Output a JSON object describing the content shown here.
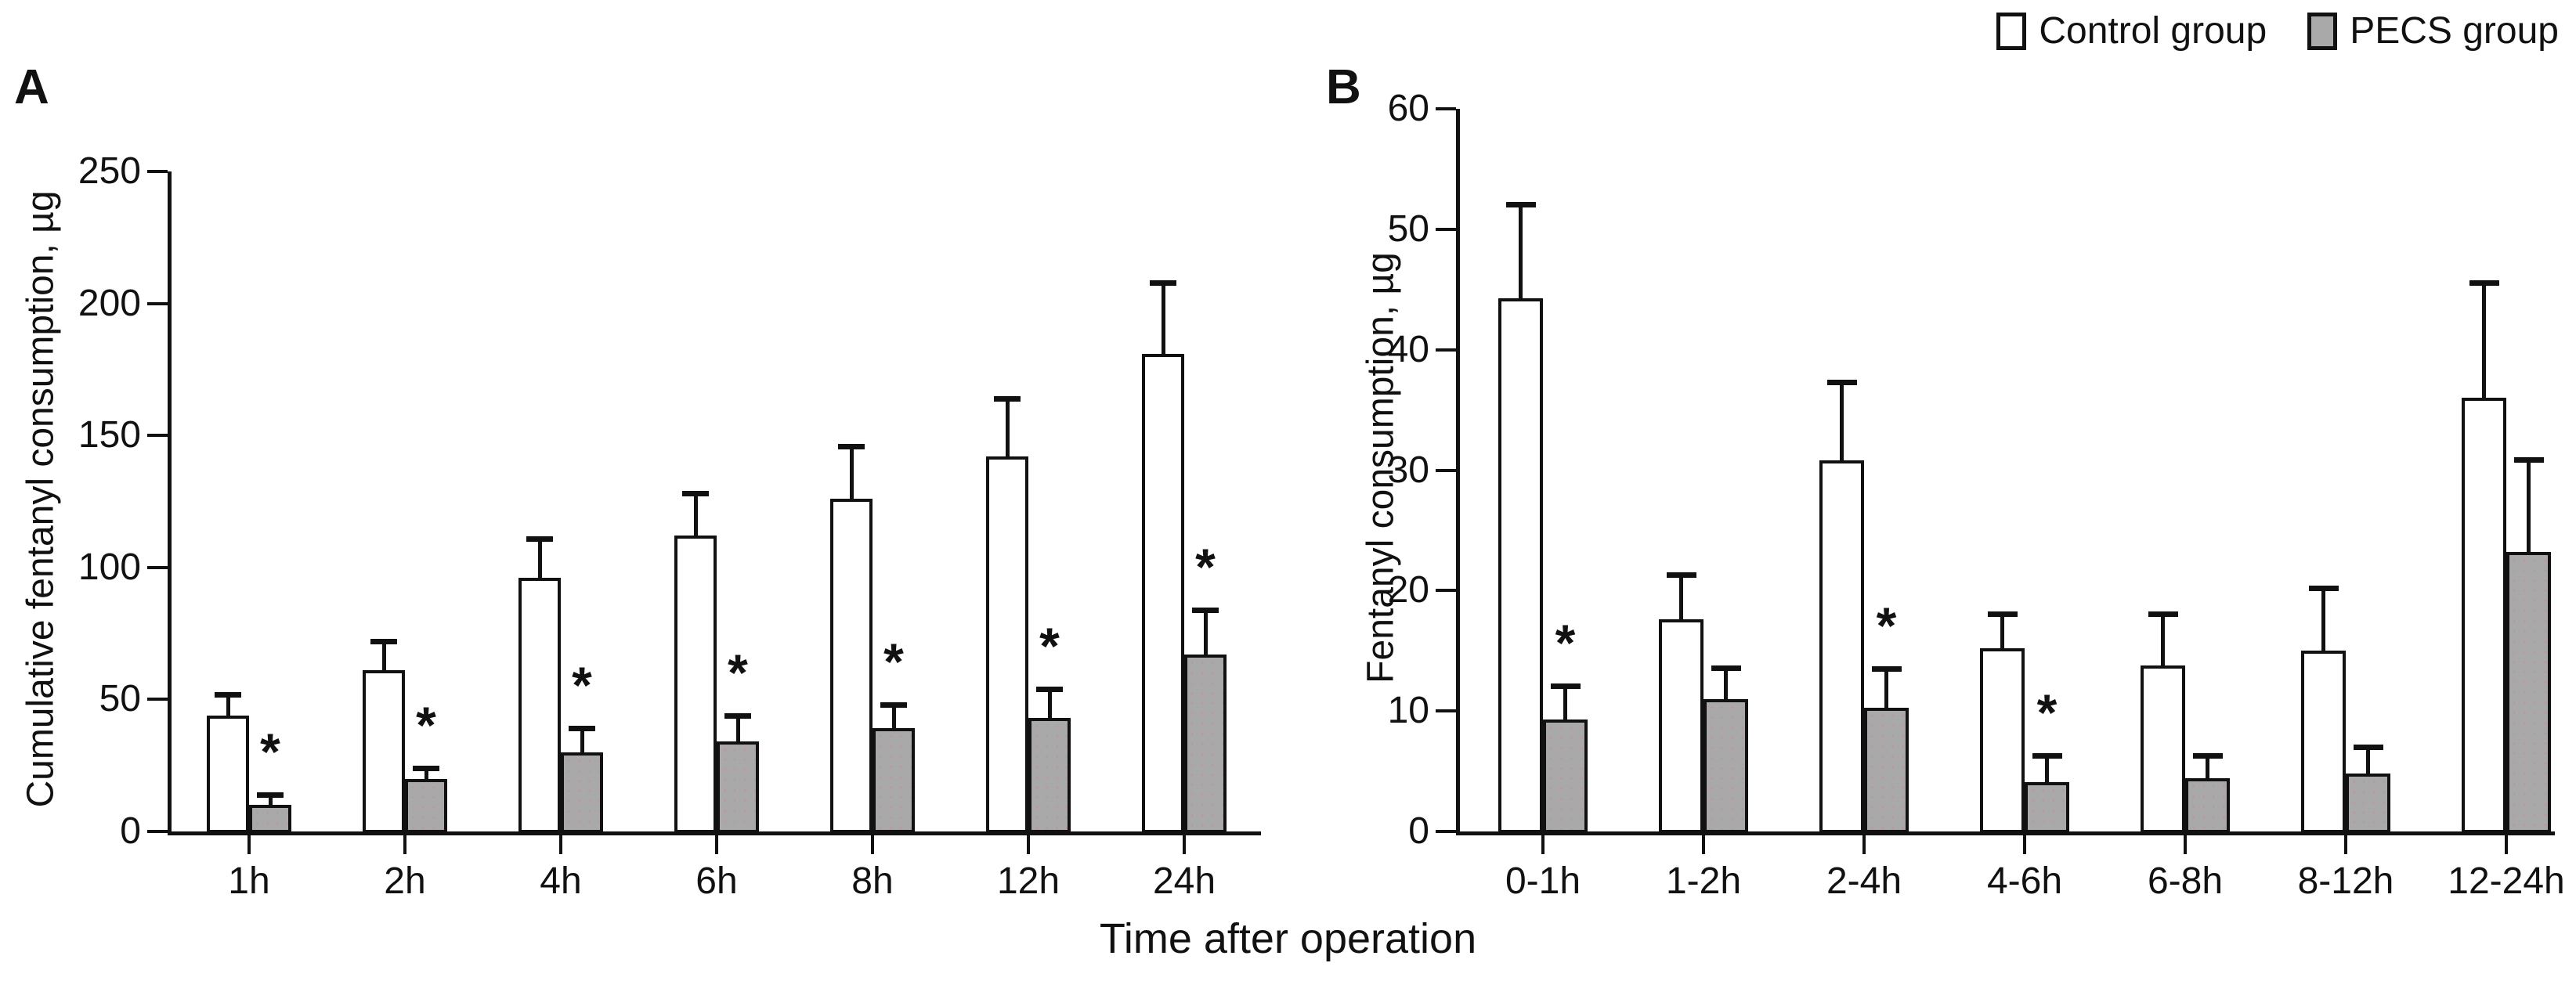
{
  "figure": {
    "xlabel": "Time after operation",
    "sig_marker": "*"
  },
  "legend": [
    {
      "label": "Control group",
      "fill": "#ffffff"
    },
    {
      "label": "PECS group",
      "fill": "#a9a9a9"
    }
  ],
  "colors": {
    "axis": "#111111",
    "control_fill": "#ffffff",
    "pecs_fill": "#a9a9a9"
  },
  "chart_data": [
    {
      "type": "bar",
      "panel": "A",
      "title": "",
      "ylabel": "Cumulative fentanyl consumption, µg",
      "xlabel": "Time after operation",
      "ylim": [
        0,
        250
      ],
      "yticks": [
        0,
        50,
        100,
        150,
        200,
        250
      ],
      "grid": false,
      "legend_position": "top-right",
      "categories": [
        "1h",
        "2h",
        "4h",
        "6h",
        "8h",
        "12h",
        "24h"
      ],
      "series": [
        {
          "name": "Control group",
          "values": [
            44,
            61,
            96,
            112,
            126,
            142,
            181
          ],
          "errors": [
            8,
            11,
            15,
            16,
            20,
            22,
            27
          ],
          "significant": [
            false,
            false,
            false,
            false,
            false,
            false,
            false
          ]
        },
        {
          "name": "PECS group",
          "values": [
            10,
            20,
            30,
            34,
            39,
            43,
            67
          ],
          "errors": [
            4,
            4,
            9,
            10,
            9,
            11,
            17
          ],
          "significant": [
            true,
            true,
            true,
            true,
            true,
            true,
            true
          ]
        }
      ]
    },
    {
      "type": "bar",
      "panel": "B",
      "title": "",
      "ylabel": "Fentanyl consumption, µg",
      "xlabel": "Time after operation",
      "ylim": [
        0,
        60
      ],
      "yticks": [
        0,
        10,
        20,
        30,
        40,
        50,
        60
      ],
      "grid": false,
      "legend_position": "top-right",
      "categories": [
        "0-1h",
        "1-2h",
        "2-4h",
        "4-6h",
        "6-8h",
        "8-12h",
        "12-24h"
      ],
      "series": [
        {
          "name": "Control group",
          "values": [
            44.3,
            17.6,
            30.8,
            15.2,
            13.8,
            15.0,
            36.0
          ],
          "errors": [
            7.8,
            3.7,
            6.5,
            2.9,
            4.3,
            5.2,
            9.6
          ],
          "significant": [
            false,
            false,
            false,
            false,
            false,
            false,
            false
          ]
        },
        {
          "name": "PECS group",
          "values": [
            9.3,
            11.0,
            10.3,
            4.1,
            4.4,
            4.8,
            23.2
          ],
          "errors": [
            2.8,
            2.6,
            3.2,
            2.2,
            1.9,
            2.2,
            7.7
          ],
          "significant": [
            true,
            false,
            true,
            true,
            false,
            false,
            false
          ]
        }
      ]
    }
  ]
}
